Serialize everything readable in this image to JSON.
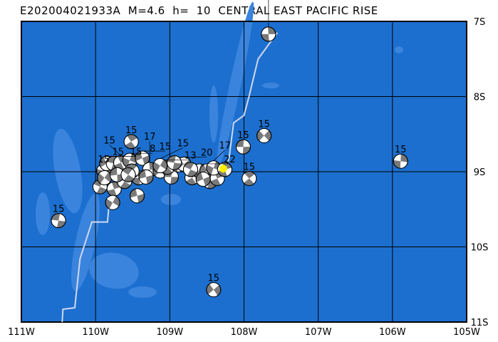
{
  "title": "E202004021933A  M=4.6  h=  10  CENTRAL EAST PACIFIC RISE",
  "colors": {
    "ocean": "#1c6fce",
    "shallow": "#3a84de",
    "ridge": "#d0d8f0",
    "ball_fill": "#7a7a7a",
    "epicenter": "#ffee00"
  },
  "map": {
    "lon_range": [
      -111,
      -105
    ],
    "lat_range": [
      -11,
      -7
    ],
    "lon_ticks": [
      {
        "v": -111,
        "label": "111W"
      },
      {
        "v": -110,
        "label": "110W"
      },
      {
        "v": -109,
        "label": "109W"
      },
      {
        "v": -108,
        "label": "108W"
      },
      {
        "v": -107,
        "label": "107W"
      },
      {
        "v": -106,
        "label": "106W"
      },
      {
        "v": -105,
        "label": "105W"
      }
    ],
    "lat_ticks": [
      {
        "v": -7,
        "label": "7S"
      },
      {
        "v": -8,
        "label": "8S"
      },
      {
        "v": -9,
        "label": "9S"
      },
      {
        "v": -10,
        "label": "10S"
      },
      {
        "v": -11,
        "label": "11S"
      }
    ]
  },
  "epicenter": {
    "lon": -108.28,
    "lat": -8.96
  },
  "ridge": [
    [
      [
        -110.45,
        -11.0
      ],
      [
        -110.44,
        -10.83
      ],
      [
        -110.28,
        -10.81
      ],
      [
        -110.21,
        -10.16
      ],
      [
        -110.05,
        -9.67
      ],
      [
        -109.84,
        -9.67
      ],
      [
        -109.82,
        -9.45
      ],
      [
        -109.78,
        -9.2
      ]
    ],
    [
      [
        -108.25,
        -9.0
      ],
      [
        -108.2,
        -8.81
      ],
      [
        -108.14,
        -8.35
      ],
      [
        -108.0,
        -8.25
      ],
      [
        -107.93,
        -7.99
      ],
      [
        -107.81,
        -7.5
      ],
      [
        -107.64,
        -7.27
      ],
      [
        -107.55,
        -7.15
      ]
    ]
  ],
  "events": [
    {
      "lon": -107.67,
      "lat": -7.17,
      "depth": "15"
    },
    {
      "lon": -107.73,
      "lat": -8.52,
      "depth": "15"
    },
    {
      "lon": -108.01,
      "lat": -8.67,
      "depth": "15"
    },
    {
      "lon": -107.93,
      "lat": -9.09,
      "depth": "15"
    },
    {
      "lon": -105.89,
      "lat": -8.86,
      "depth": "15"
    },
    {
      "lon": -108.41,
      "lat": -10.57,
      "depth": "15"
    },
    {
      "lon": -110.5,
      "lat": -9.65,
      "depth": "15"
    },
    {
      "lon": -109.52,
      "lat": -8.6,
      "depth": "15"
    },
    {
      "lon": -109.89,
      "lat": -8.99,
      "depth": "15"
    },
    {
      "lon": -109.85,
      "lat": -8.89,
      "depth": "15"
    },
    {
      "lon": -109.76,
      "lat": -8.89,
      "depth": "15"
    },
    {
      "lon": -109.66,
      "lat": -8.88,
      "depth": "15"
    },
    {
      "lon": -109.54,
      "lat": -8.85,
      "depth": "8"
    },
    {
      "lon": -109.37,
      "lat": -8.82,
      "depth": "15"
    },
    {
      "lon": -109.94,
      "lat": -9.2,
      "depth": ""
    },
    {
      "lon": -109.75,
      "lat": -9.23,
      "depth": ""
    },
    {
      "lon": -109.77,
      "lat": -9.41,
      "depth": ""
    },
    {
      "lon": -109.44,
      "lat": -9.32,
      "depth": ""
    },
    {
      "lon": -109.61,
      "lat": -9.13,
      "depth": ""
    },
    {
      "lon": -109.42,
      "lat": -9.08,
      "depth": ""
    },
    {
      "lon": -109.88,
      "lat": -9.08,
      "depth": ""
    },
    {
      "lon": -109.71,
      "lat": -9.04,
      "depth": ""
    },
    {
      "lon": -109.51,
      "lat": -8.99,
      "depth": ""
    },
    {
      "lon": -109.27,
      "lat": -8.97,
      "depth": "17"
    },
    {
      "lon": -109.13,
      "lat": -8.99,
      "depth": ""
    },
    {
      "lon": -108.98,
      "lat": -9.07,
      "depth": ""
    },
    {
      "lon": -109.03,
      "lat": -8.94,
      "depth": "13"
    },
    {
      "lon": -108.89,
      "lat": -8.91,
      "depth": ""
    },
    {
      "lon": -108.81,
      "lat": -8.9,
      "depth": "20"
    },
    {
      "lon": -108.94,
      "lat": -8.88,
      "depth": ""
    },
    {
      "lon": -108.7,
      "lat": -9.08,
      "depth": ""
    },
    {
      "lon": -108.6,
      "lat": -8.99,
      "depth": ""
    },
    {
      "lon": -108.5,
      "lat": -8.99,
      "depth": "22"
    },
    {
      "lon": -108.46,
      "lat": -9.13,
      "depth": ""
    },
    {
      "lon": -108.36,
      "lat": -9.09,
      "depth": ""
    },
    {
      "lon": -108.41,
      "lat": -8.95,
      "depth": "17"
    },
    {
      "lon": -108.55,
      "lat": -9.1,
      "depth": ""
    },
    {
      "lon": -108.72,
      "lat": -8.97,
      "depth": ""
    },
    {
      "lon": -108.26,
      "lat": -8.97,
      "depth": ""
    },
    {
      "lon": -109.13,
      "lat": -8.92,
      "depth": "15"
    },
    {
      "lon": -109.32,
      "lat": -9.07,
      "depth": ""
    },
    {
      "lon": -109.56,
      "lat": -9.04,
      "depth": ""
    }
  ]
}
